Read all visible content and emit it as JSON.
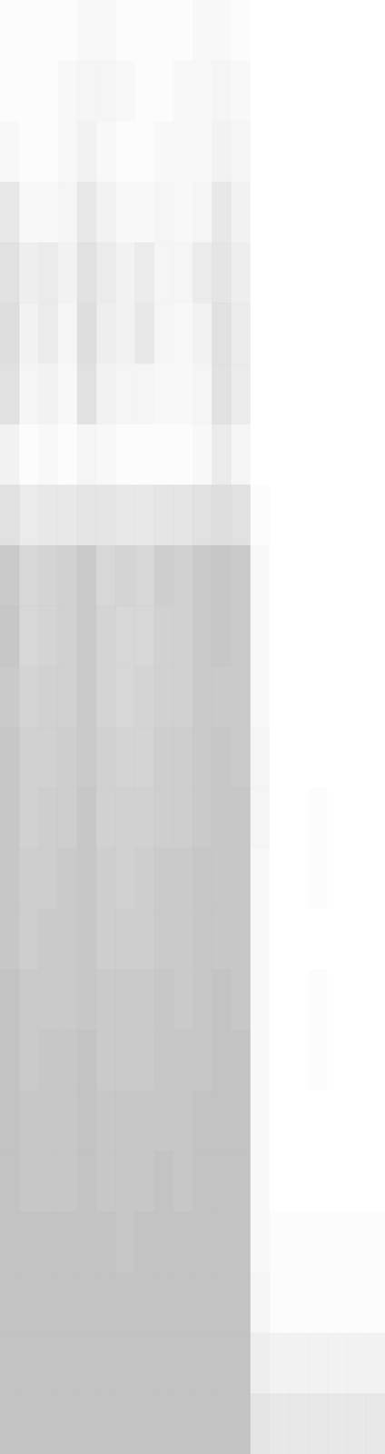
{
  "chart_data": {
    "type": "heatmap",
    "tick_labels": false,
    "color": "#bdbdbd",
    "cells": [
      [
        0.05,
        0.05,
        0.05,
        0.05,
        0.1,
        0.1,
        0.05,
        0.05,
        0.05,
        0.05,
        0.1,
        0.1,
        0.05,
        0,
        0,
        0,
        0,
        0,
        0,
        0
      ],
      [
        0.05,
        0.05,
        0.05,
        0.1,
        0.15,
        0.15,
        0.1,
        0.05,
        0.05,
        0.1,
        0.1,
        0.15,
        0.1,
        0,
        0,
        0,
        0,
        0,
        0,
        0
      ],
      [
        0.1,
        0.05,
        0.05,
        0.1,
        0.2,
        0.1,
        0.05,
        0.05,
        0.1,
        0.1,
        0.1,
        0.2,
        0.15,
        0,
        0,
        0,
        0,
        0,
        0,
        0
      ],
      [
        0.35,
        0.1,
        0.1,
        0.15,
        0.35,
        0.2,
        0.1,
        0.1,
        0.15,
        0.1,
        0.15,
        0.35,
        0.2,
        0,
        0,
        0,
        0,
        0,
        0,
        0
      ],
      [
        0.45,
        0.25,
        0.3,
        0.2,
        0.45,
        0.3,
        0.2,
        0.3,
        0.15,
        0.15,
        0.3,
        0.4,
        0.25,
        0,
        0,
        0,
        0,
        0,
        0,
        0
      ],
      [
        0.5,
        0.2,
        0.3,
        0.15,
        0.5,
        0.25,
        0.2,
        0.35,
        0.15,
        0.1,
        0.2,
        0.45,
        0.3,
        0,
        0,
        0,
        0,
        0,
        0,
        0
      ],
      [
        0.45,
        0.15,
        0.2,
        0.1,
        0.45,
        0.2,
        0.15,
        0.15,
        0.1,
        0.1,
        0.15,
        0.45,
        0.3,
        0,
        0,
        0,
        0,
        0,
        0,
        0
      ],
      [
        0.2,
        0.05,
        0.1,
        0.05,
        0.15,
        0.1,
        0.05,
        0.05,
        0.05,
        0.05,
        0.1,
        0.3,
        0.15,
        0,
        0,
        0,
        0,
        0,
        0,
        0
      ],
      [
        0.45,
        0.3,
        0.35,
        0.35,
        0.4,
        0.4,
        0.35,
        0.35,
        0.4,
        0.4,
        0.45,
        0.5,
        0.45,
        0.05,
        0,
        0,
        0,
        0,
        0,
        0
      ],
      [
        0.8,
        0.6,
        0.65,
        0.7,
        0.8,
        0.6,
        0.65,
        0.6,
        0.75,
        0.7,
        0.8,
        0.85,
        0.8,
        0.1,
        0,
        0,
        0,
        0,
        0,
        0
      ],
      [
        0.85,
        0.6,
        0.65,
        0.7,
        0.8,
        0.65,
        0.6,
        0.6,
        0.7,
        0.7,
        0.8,
        0.85,
        0.8,
        0.1,
        0,
        0,
        0,
        0,
        0,
        0
      ],
      [
        0.8,
        0.65,
        0.7,
        0.7,
        0.8,
        0.65,
        0.6,
        0.65,
        0.7,
        0.7,
        0.8,
        0.8,
        0.8,
        0.1,
        0,
        0,
        0,
        0,
        0,
        0
      ],
      [
        0.85,
        0.7,
        0.7,
        0.75,
        0.8,
        0.7,
        0.65,
        0.65,
        0.75,
        0.75,
        0.8,
        0.85,
        0.8,
        0.15,
        0,
        0,
        0,
        0,
        0,
        0
      ],
      [
        0.85,
        0.7,
        0.75,
        0.75,
        0.85,
        0.7,
        0.7,
        0.7,
        0.75,
        0.75,
        0.8,
        0.85,
        0.85,
        0.15,
        0,
        0,
        0.05,
        0,
        0,
        0
      ],
      [
        0.85,
        0.75,
        0.75,
        0.8,
        0.85,
        0.75,
        0.7,
        0.75,
        0.8,
        0.8,
        0.85,
        0.85,
        0.85,
        0.1,
        0,
        0,
        0.05,
        0,
        0,
        0
      ],
      [
        0.85,
        0.75,
        0.8,
        0.8,
        0.85,
        0.75,
        0.75,
        0.75,
        0.8,
        0.8,
        0.85,
        0.85,
        0.85,
        0.1,
        0,
        0,
        0,
        0,
        0,
        0
      ],
      [
        0.9,
        0.8,
        0.8,
        0.8,
        0.85,
        0.8,
        0.8,
        0.8,
        0.85,
        0.8,
        0.85,
        0.9,
        0.85,
        0.1,
        0,
        0,
        0.05,
        0,
        0,
        0
      ],
      [
        0.9,
        0.8,
        0.85,
        0.85,
        0.9,
        0.8,
        0.8,
        0.8,
        0.85,
        0.85,
        0.85,
        0.9,
        0.9,
        0.1,
        0,
        0,
        0.05,
        0,
        0,
        0
      ],
      [
        0.9,
        0.85,
        0.85,
        0.85,
        0.9,
        0.85,
        0.85,
        0.85,
        0.85,
        0.85,
        0.9,
        0.9,
        0.9,
        0.1,
        0,
        0,
        0,
        0,
        0,
        0
      ],
      [
        0.9,
        0.85,
        0.85,
        0.85,
        0.9,
        0.85,
        0.85,
        0.85,
        0.9,
        0.85,
        0.9,
        0.9,
        0.9,
        0.1,
        0,
        0,
        0,
        0,
        0,
        0
      ],
      [
        0.9,
        0.9,
        0.9,
        0.9,
        0.9,
        0.9,
        0.85,
        0.9,
        0.9,
        0.9,
        0.9,
        0.9,
        0.9,
        0.1,
        0.05,
        0.05,
        0.05,
        0.05,
        0.05,
        0.05
      ],
      [
        0.9,
        0.9,
        0.9,
        0.9,
        0.9,
        0.9,
        0.9,
        0.9,
        0.9,
        0.9,
        0.9,
        0.9,
        0.9,
        0.15,
        0.05,
        0.05,
        0.05,
        0.05,
        0.05,
        0.05
      ],
      [
        0.9,
        0.9,
        0.9,
        0.9,
        0.9,
        0.9,
        0.9,
        0.9,
        0.9,
        0.9,
        0.9,
        0.9,
        0.9,
        0.25,
        0.2,
        0.2,
        0.2,
        0.2,
        0.2,
        0.2
      ],
      [
        0.9,
        0.9,
        0.9,
        0.9,
        0.9,
        0.9,
        0.9,
        0.9,
        0.9,
        0.9,
        0.9,
        0.9,
        0.9,
        0.4,
        0.35,
        0.35,
        0.35,
        0.35,
        0.35,
        0.35
      ]
    ]
  }
}
